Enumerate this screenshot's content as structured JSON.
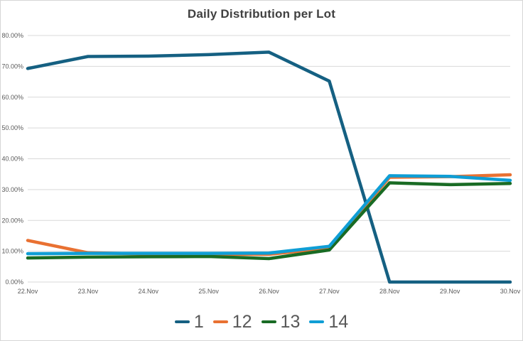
{
  "title": "Daily Distribution per Lot",
  "colors": {
    "title_text": "#404040",
    "axis_text": "#595959",
    "gridline": "#d9d9d9",
    "legend_text": "#595959",
    "background": "#ffffff",
    "frame_border": "#d6d6d6"
  },
  "chart_data": {
    "type": "line",
    "title": "Daily Distribution per Lot",
    "categories": [
      "22.Nov",
      "23.Nov",
      "24.Nov",
      "25.Nov",
      "26.Nov",
      "27.Nov",
      "28.Nov",
      "29.Nov",
      "30.Nov"
    ],
    "series": [
      {
        "name": "1",
        "color": "#156082",
        "values": [
          69.3,
          73.2,
          73.3,
          73.8,
          74.6,
          65.2,
          0.0,
          0.0,
          0.0
        ]
      },
      {
        "name": "12",
        "color": "#E97132",
        "values": [
          13.5,
          9.5,
          9.1,
          9.0,
          9.0,
          11.0,
          34.0,
          34.2,
          34.8
        ]
      },
      {
        "name": "13",
        "color": "#196B24",
        "values": [
          7.8,
          8.1,
          8.2,
          8.3,
          7.6,
          10.4,
          32.2,
          31.6,
          32.0
        ]
      },
      {
        "name": "14",
        "color": "#0F9ED5",
        "values": [
          9.2,
          9.3,
          9.3,
          9.3,
          9.4,
          11.6,
          34.5,
          34.3,
          33.0
        ]
      }
    ],
    "xlabel": "",
    "ylabel": "",
    "ylim": [
      0,
      80
    ],
    "ytick_step": 10,
    "ytick_labels": [
      "0.00%",
      "10.00%",
      "20.00%",
      "30.00%",
      "40.00%",
      "50.00%",
      "60.00%",
      "70.00%",
      "80.00%"
    ],
    "grid": true,
    "legend_position": "bottom"
  }
}
